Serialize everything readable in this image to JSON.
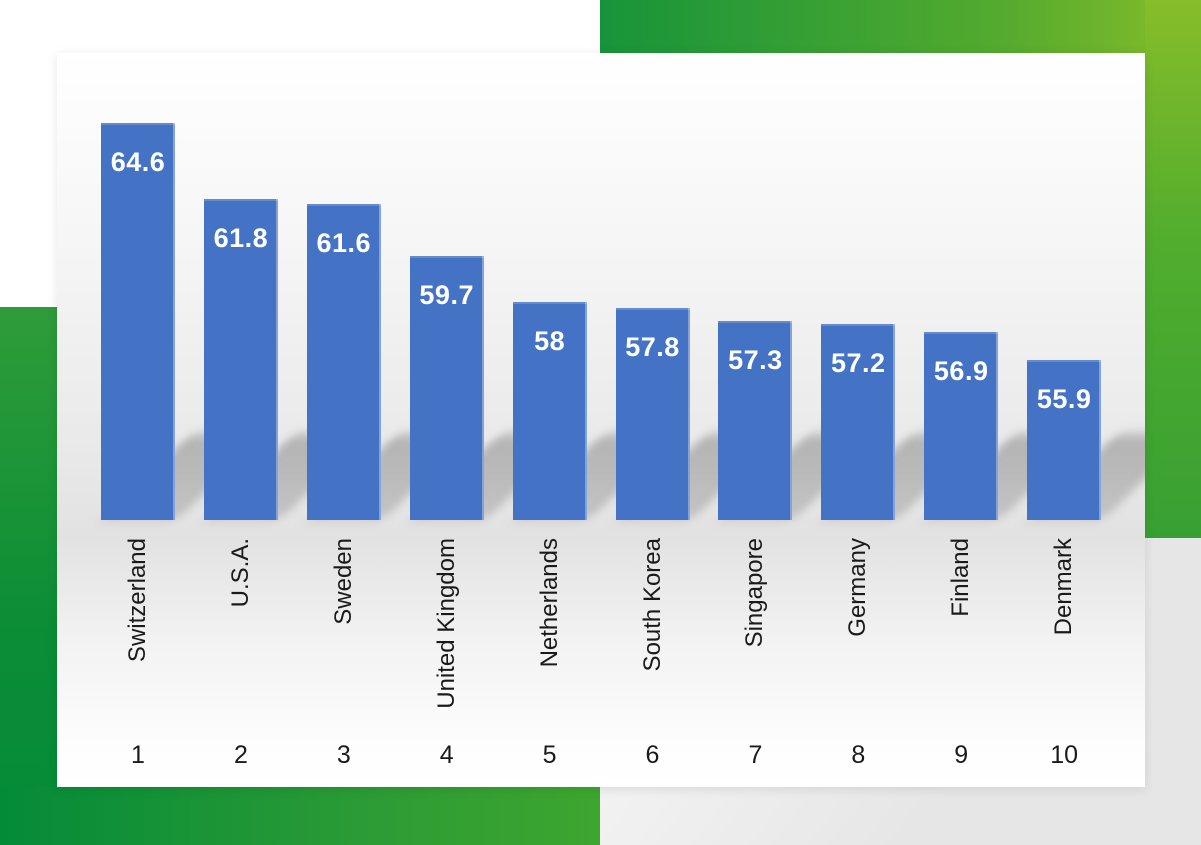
{
  "chart_data": {
    "type": "bar",
    "title": "",
    "xlabel": "",
    "ylabel": "",
    "categories": [
      "Switzerland",
      "U.S.A.",
      "Sweden",
      "United Kingdom",
      "Netherlands",
      "South Korea",
      "Singapore",
      "Germany",
      "Finland",
      "Denmark"
    ],
    "values": [
      64.6,
      61.8,
      61.6,
      59.7,
      58,
      57.8,
      57.3,
      57.2,
      56.9,
      55.9
    ],
    "ranks": [
      "1",
      "2",
      "3",
      "4",
      "5",
      "6",
      "7",
      "8",
      "9",
      "10"
    ],
    "ylim": [
      50,
      65
    ],
    "grid": false,
    "legend": "none",
    "bar_color": "#4472C4",
    "value_label_color": "#FFFFFF",
    "category_label_color": "#1A1A1A"
  },
  "decor": {
    "green_dark": "#048B38",
    "green_mid": "#2E9C33",
    "green_light": "#87BD2A"
  }
}
